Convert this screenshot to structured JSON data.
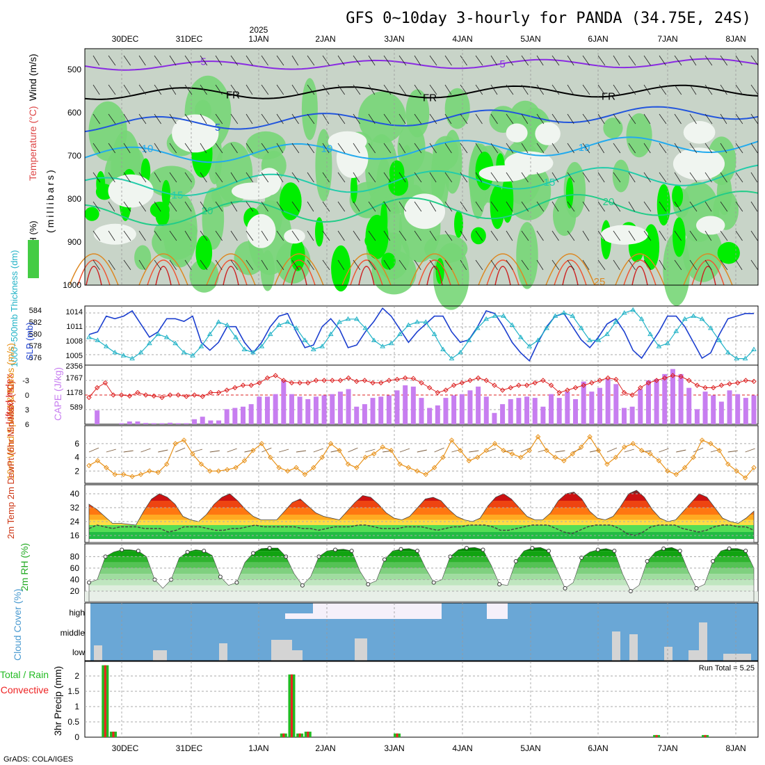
{
  "title": "GFS 0~10day 3-hourly for PANDA (34.75E, 24S)",
  "footer": "GrADS: COLA/IGES",
  "year_label": "2025",
  "date_labels": [
    "30DEC",
    "31DEC",
    "1JAN",
    "2JAN",
    "3JAN",
    "4JAN",
    "5JAN",
    "6JAN",
    "7JAN",
    "8JAN"
  ],
  "chart_data": [
    {
      "type": "heatmap",
      "panel": "upper-air",
      "ylabels": {
        "rh": "RH (%)",
        "temp": "Temperature (°C)",
        "wind": "Wind (m/s)",
        "pres": "(millibars)"
      },
      "y_ticks": [
        500,
        600,
        700,
        800,
        900,
        1000
      ],
      "contour_labels": [
        "-5",
        "FR",
        "5",
        "10",
        "15",
        "20",
        "25"
      ],
      "colors": {
        "rh_high": "#00ee00",
        "rh_mid": "#77d677",
        "rh_low": "#c8d4c8",
        "temp_neg": "#8a2be2",
        "temp_fr": "#000000",
        "temp_5": "#2255dd",
        "temp_10": "#22aaee",
        "temp_15": "#22ccaa",
        "temp_20": "#22cc88",
        "temp_25": "#dd8822"
      }
    },
    {
      "type": "line",
      "panel": "slp-thickness",
      "ylabel_thick": "1000~500mb Thickness (dm)",
      "ylabel_slp": "SLP (mb)",
      "y_ticks_thick": [
        "584",
        "582",
        "580",
        "578",
        "576"
      ],
      "y_ticks_slp": [
        "1014",
        "1011",
        "1008",
        "1005"
      ],
      "series": [
        {
          "name": "SLP",
          "axis": "slp",
          "color": "#1c3fcf",
          "values": [
            1009.5,
            1010,
            1013,
            1012.5,
            1013,
            1014,
            1011.5,
            1009,
            1010,
            1012.5,
            1012.5,
            1012,
            1013,
            1008,
            1006.5,
            1008,
            1011,
            1011,
            1008,
            1006,
            1008,
            1011,
            1013,
            1013.5,
            1010,
            1007,
            1007.5,
            1011,
            1012.5,
            1010.5,
            1007,
            1007.5,
            1010,
            1012,
            1014.5,
            1013,
            1010.5,
            1008,
            1010,
            1011.5,
            1013,
            1013,
            1010,
            1008,
            1008.5,
            1011,
            1014,
            1013.5,
            1011,
            1008,
            1006,
            1004.5,
            1008,
            1011,
            1013,
            1013.5,
            1011,
            1008.5,
            1007,
            1009,
            1011.5,
            1012.5,
            1010,
            1006.5,
            1005,
            1007.5,
            1010,
            1013,
            1013,
            1011,
            1008,
            1005,
            1006,
            1009.5,
            1012.5,
            1013,
            1013.5,
            1013.5
          ]
        },
        {
          "name": "Thickness",
          "axis": "thick",
          "color": "#22b3c7",
          "values": [
            580,
            579.5,
            578.5,
            577.5,
            577,
            576.5,
            577.5,
            579,
            580.5,
            580,
            579,
            577.5,
            577,
            578.5,
            580.5,
            582.5,
            582,
            580,
            578,
            577.5,
            578.5,
            580.5,
            582,
            582.5,
            581.5,
            579.5,
            578,
            578.5,
            580.5,
            582.5,
            583,
            583,
            581.5,
            579.5,
            578.5,
            579,
            580.5,
            582,
            582.5,
            582.5,
            580.5,
            578,
            576.5,
            577.5,
            579.5,
            581.5,
            583,
            583.5,
            583.5,
            582,
            580,
            578.5,
            579.5,
            581.5,
            583.5,
            584,
            583.5,
            581.5,
            579.5,
            579.5,
            580.5,
            582.5,
            584,
            584.5,
            583,
            580.5,
            578.5,
            579,
            581,
            583,
            583.5,
            583,
            581.5,
            579.5,
            577.5,
            576.5,
            576.5,
            578
          ]
        }
      ]
    },
    {
      "type": "bar",
      "panel": "cape-li",
      "ylabel_li": "Lifted Index",
      "ylabel_cape": "CAPE (J/kg)",
      "y_ticks_li": [
        "-3",
        "0",
        "3",
        "6"
      ],
      "y_ticks_cape": [
        "2356",
        "1767",
        "1178",
        "589"
      ],
      "series": [
        {
          "name": "CAPE",
          "color": "#c77ef0",
          "values": [
            0,
            550,
            0,
            0,
            40,
            110,
            110,
            50,
            40,
            40,
            60,
            40,
            40,
            200,
            300,
            150,
            150,
            600,
            650,
            700,
            800,
            1100,
            1100,
            1200,
            1750,
            1200,
            1100,
            1000,
            1100,
            1150,
            1200,
            1300,
            1400,
            700,
            800,
            1050,
            1100,
            1150,
            1350,
            1550,
            1500,
            1050,
            650,
            750,
            1050,
            1150,
            1200,
            1350,
            1500,
            1100,
            450,
            800,
            1000,
            1050,
            1100,
            1050,
            700,
            1200,
            1050,
            1300,
            1000,
            1700,
            1300,
            1450,
            1800,
            1600,
            650,
            700,
            1400,
            1750,
            1800,
            2000,
            2200,
            2000,
            1450,
            600,
            1300,
            1150,
            900,
            1350,
            1200,
            1050,
            1150
          ]
        },
        {
          "name": "LI",
          "color": "#dd2222",
          "values": [
            0.5,
            -1.5,
            -2.5,
            0,
            0,
            0.2,
            -0.5,
            0,
            0.2,
            0.5,
            0,
            0,
            0.3,
            0,
            0.3,
            -0.5,
            -0.5,
            -1,
            -1.5,
            -2,
            -2,
            -2.5,
            -3.5,
            -4,
            -3,
            -2.5,
            -2.5,
            -2.5,
            -3,
            -3,
            -3,
            -3,
            -3.5,
            -2.8,
            -3,
            -2.5,
            -2.5,
            -3,
            -3.2,
            -3.5,
            -3.4,
            -2.5,
            -1.5,
            -0.5,
            -1,
            -2,
            -2.5,
            -3,
            -3.5,
            -3,
            -2,
            -1,
            -1.5,
            -2,
            -2,
            -2.5,
            -3,
            -2,
            -0.5,
            -1,
            -1.5,
            -2,
            -2.5,
            -3,
            -3.5,
            -3.2,
            -0.5,
            0,
            -1.5,
            -2.5,
            -3,
            -3.5,
            -4,
            -3.8,
            -3,
            -2,
            -1.5,
            -1.5,
            -2,
            -2.3,
            -2.5,
            -3,
            -2.8
          ]
        }
      ]
    },
    {
      "type": "line",
      "panel": "wind10m",
      "ylabel": "10m Wind Speed & Barbs (m/s)",
      "y_ticks": [
        "6",
        "4",
        "2"
      ],
      "series": [
        {
          "name": "10m Wind",
          "color": "#e8921a",
          "values": [
            2.8,
            3.5,
            2.5,
            1.5,
            1.5,
            1.2,
            1.5,
            2,
            1.8,
            3,
            6,
            6.5,
            4.5,
            3,
            2,
            2,
            2.2,
            2.5,
            3.5,
            5,
            6,
            4,
            2.5,
            2,
            2.5,
            1.5,
            2.5,
            4,
            6,
            5,
            3,
            2.5,
            4,
            4.5,
            5.5,
            5,
            3,
            2.5,
            2,
            1.5,
            2.5,
            4,
            6.5,
            5,
            3.5,
            4,
            5,
            6,
            5,
            4.5,
            4,
            5,
            7,
            5,
            4,
            3.5,
            4.5,
            5.5,
            7,
            5,
            3,
            4,
            5.5,
            6,
            5,
            4.5,
            3.5,
            2,
            1.5,
            2.5,
            4,
            6.5,
            6,
            5,
            3,
            2,
            1,
            2.5
          ]
        }
      ]
    },
    {
      "type": "area",
      "panel": "temp2m",
      "ylabel": "2m Temp 2m DewPt (6hr Min/Max) (°C)",
      "y_ticks": [
        "40",
        "32",
        "24",
        "16"
      ],
      "series": [
        {
          "name": "2m Temp",
          "values": [
            34,
            31,
            27,
            23,
            23,
            22.5,
            22,
            30,
            37,
            40,
            38,
            34,
            27,
            25,
            24,
            28,
            34,
            38,
            40,
            36,
            31,
            27,
            25,
            25,
            25,
            30,
            35,
            37,
            33,
            29,
            27,
            26,
            25,
            30,
            35,
            39,
            38,
            34,
            29,
            26,
            25,
            27,
            32,
            37,
            38,
            36,
            31,
            27,
            25,
            24,
            26,
            33,
            38,
            40,
            37,
            32,
            27,
            25,
            25,
            29,
            36,
            40,
            41,
            37,
            30,
            26,
            25,
            27,
            33,
            40,
            42,
            38,
            31,
            26,
            24,
            25,
            30,
            35,
            40,
            38,
            32,
            26,
            24,
            23,
            26,
            30
          ]
        },
        {
          "name": "2m DewPt",
          "values": [
            20,
            22,
            21,
            20,
            21,
            21,
            21,
            20,
            20,
            20,
            18,
            19,
            21,
            21,
            21,
            20,
            19,
            19,
            20,
            20,
            21,
            22,
            21,
            21,
            21,
            21,
            21,
            20,
            20,
            19,
            20,
            21,
            21,
            21,
            22,
            22,
            21,
            20,
            20,
            20,
            21,
            21,
            21,
            20,
            19,
            20,
            21,
            21,
            22,
            22,
            22,
            21,
            19,
            19,
            20,
            21,
            22,
            22,
            22,
            20,
            18,
            17,
            19,
            21,
            22,
            22,
            22,
            20,
            17,
            16,
            18,
            21,
            22,
            22,
            22,
            20,
            19,
            18,
            19,
            21,
            22,
            22,
            21,
            21,
            19
          ]
        }
      ]
    },
    {
      "type": "area",
      "panel": "rh2m",
      "ylabel": "2m RH (%)",
      "y_ticks": [
        "80",
        "60",
        "40",
        "20"
      ],
      "series": [
        {
          "name": "2m RH",
          "values": [
            35,
            40,
            80,
            88,
            92,
            92,
            90,
            80,
            40,
            25,
            40,
            78,
            88,
            92,
            90,
            82,
            45,
            30,
            35,
            70,
            86,
            94,
            95,
            95,
            80,
            50,
            30,
            45,
            80,
            90,
            92,
            93,
            90,
            55,
            32,
            38,
            75,
            90,
            93,
            94,
            90,
            60,
            35,
            40,
            80,
            92,
            95,
            96,
            92,
            65,
            32,
            30,
            72,
            90,
            95,
            96,
            90,
            58,
            25,
            35,
            78,
            88,
            92,
            94,
            90,
            50,
            20,
            30,
            72,
            88,
            94,
            96,
            90,
            55,
            25,
            32,
            72,
            90,
            94,
            94,
            90,
            60
          ]
        }
      ]
    },
    {
      "type": "bar",
      "panel": "cloud",
      "ylabel": "Cloud Cover (%)",
      "categories": [
        "high",
        "middle",
        "low"
      ],
      "colors": {
        "cloud": "#6aa7d6",
        "clear": "#f5f0fa",
        "low_block": "#d4d4d4"
      }
    },
    {
      "type": "bar",
      "panel": "precip",
      "ylabel": "3hr Precip (mm)",
      "legend": [
        "Total / Rain",
        "Convective"
      ],
      "run_total": "Run Total = 5.25",
      "y_ticks": [
        "2",
        "1.5",
        "1",
        "0.5",
        "0"
      ],
      "series": [
        {
          "name": "Total / Rain",
          "color": "#22bb22",
          "values": [
            0,
            0,
            2.35,
            0.18,
            0,
            0,
            0,
            0,
            0,
            0,
            0,
            0,
            0,
            0,
            0,
            0,
            0,
            0,
            0,
            0,
            0,
            0,
            0,
            0,
            0.12,
            2.05,
            0.12,
            0.18,
            0,
            0,
            0,
            0,
            0,
            0,
            0,
            0,
            0,
            0,
            0.12,
            0,
            0,
            0,
            0,
            0,
            0,
            0,
            0,
            0,
            0,
            0,
            0,
            0,
            0,
            0,
            0,
            0,
            0,
            0,
            0,
            0,
            0,
            0,
            0,
            0,
            0,
            0,
            0,
            0,
            0,
            0,
            0.07,
            0,
            0,
            0,
            0,
            0,
            0.07,
            0,
            0,
            0,
            0,
            0,
            0
          ]
        },
        {
          "name": "Convective",
          "color": "#ee2222",
          "values": [
            0,
            0,
            2.35,
            0.18,
            0,
            0,
            0,
            0,
            0,
            0,
            0,
            0,
            0,
            0,
            0,
            0,
            0,
            0,
            0,
            0,
            0,
            0,
            0,
            0,
            0.12,
            2.05,
            0.12,
            0.18,
            0,
            0,
            0,
            0,
            0,
            0,
            0,
            0,
            0,
            0,
            0.12,
            0,
            0,
            0,
            0,
            0,
            0,
            0,
            0,
            0,
            0,
            0,
            0,
            0,
            0,
            0,
            0,
            0,
            0,
            0,
            0,
            0,
            0,
            0,
            0,
            0,
            0,
            0,
            0,
            0,
            0,
            0,
            0.07,
            0,
            0,
            0,
            0,
            0,
            0.07,
            0,
            0,
            0,
            0,
            0,
            0
          ]
        }
      ]
    }
  ]
}
